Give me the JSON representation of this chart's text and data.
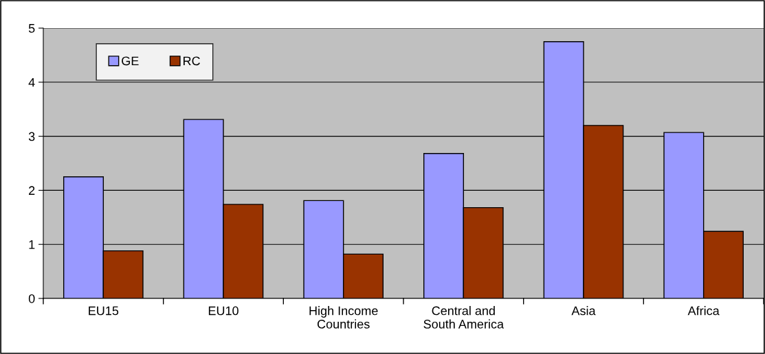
{
  "chart_data": {
    "type": "bar",
    "categories": [
      "EU15",
      "EU10",
      "High Income\nCountries",
      "Central and\nSouth America",
      "Asia",
      "Africa"
    ],
    "series": [
      {
        "name": "GE",
        "color": "#9999ff",
        "values": [
          2.25,
          3.31,
          1.81,
          2.68,
          4.75,
          3.07
        ]
      },
      {
        "name": "RC",
        "color": "#993300",
        "values": [
          0.88,
          1.74,
          0.82,
          1.68,
          3.2,
          1.24
        ]
      }
    ],
    "ylim": [
      0,
      5
    ],
    "yticks": [
      0,
      1,
      2,
      3,
      4,
      5
    ],
    "grid": "y",
    "legend": "top left"
  }
}
